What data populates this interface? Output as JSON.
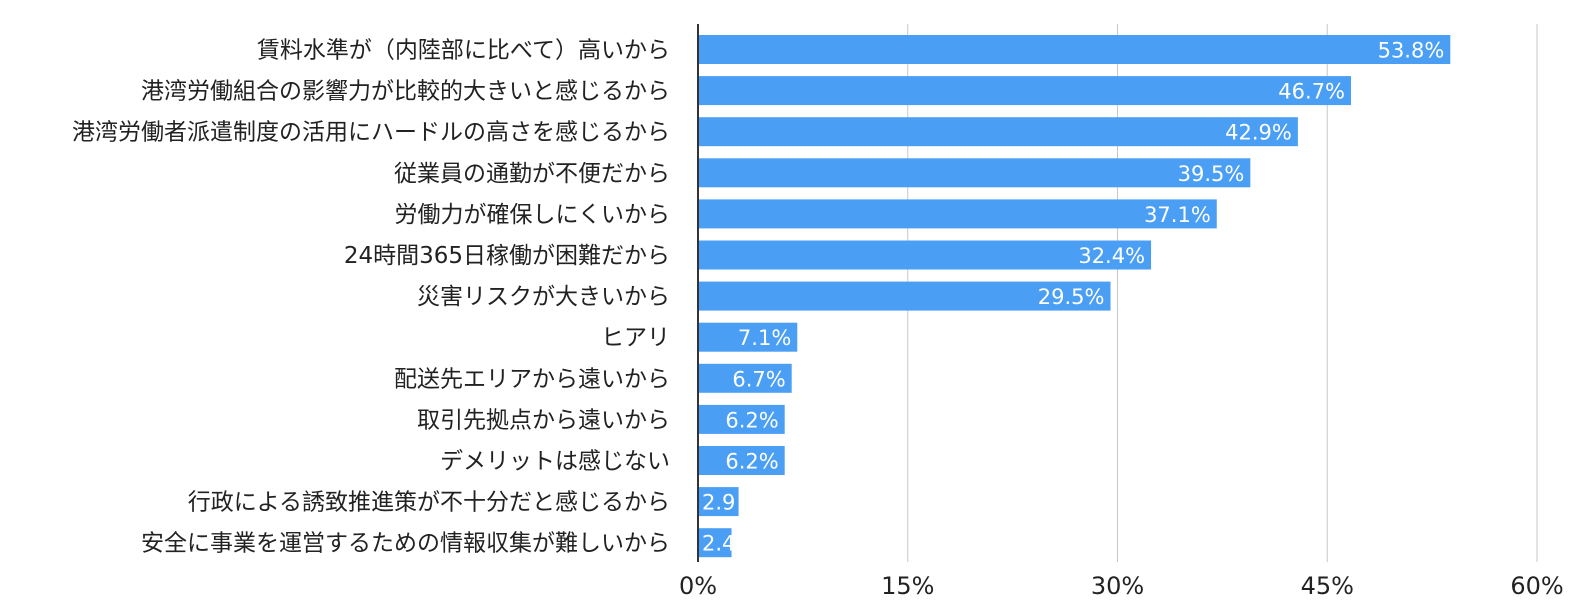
{
  "chart_data": {
    "type": "bar",
    "orientation": "horizontal",
    "categories": [
      "賃料水準が（内陸部に比べて）高いから",
      "港湾労働組合の影響力が比較的大きいと感じるから",
      "港湾労働者派遣制度の活用にハードルの高さを感じるから",
      "従業員の通勤が不便だから",
      "労働力が確保しにくいから",
      "24時間365日稼働が困難だから",
      "災害リスクが大きいから",
      "ヒアリ",
      "配送先エリアから遠いから",
      "取引先拠点から遠いから",
      "デメリットは感じない",
      "行政による誘致推進策が不十分だと感じるから",
      "安全に事業を運営するための情報収集が難しいから"
    ],
    "values": [
      53.8,
      46.7,
      42.9,
      39.5,
      37.1,
      32.4,
      29.5,
      7.1,
      6.7,
      6.2,
      6.2,
      2.9,
      2.4
    ],
    "value_labels": [
      "53.8%",
      "46.7%",
      "42.9%",
      "39.5%",
      "37.1%",
      "32.4%",
      "29.5%",
      "7.1%",
      "6.7%",
      "6.2%",
      "6.2%",
      "2.9",
      "2.4"
    ],
    "x_ticks": [
      0,
      15,
      30,
      45,
      60
    ],
    "x_tick_labels": [
      "0%",
      "15%",
      "30%",
      "45%",
      "60%"
    ],
    "xlim": [
      0,
      60
    ],
    "grid": true,
    "bar_color": "#4a9ff5",
    "title": "",
    "xlabel": "",
    "ylabel": ""
  }
}
